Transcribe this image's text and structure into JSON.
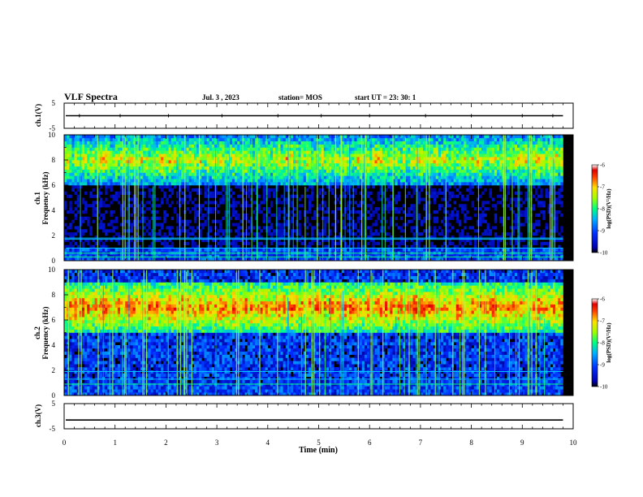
{
  "header": {
    "title": "VLF Spectra",
    "date": "Jul. 3 , 2023",
    "station": "station= MOS",
    "start_ut": "start UT = 23: 30: 1"
  },
  "chart_data": [
    {
      "type": "line",
      "name": "ch1-waveform",
      "ylabel": "ch.1(V)",
      "ylim": [
        -5,
        5
      ],
      "yticks": [
        "5",
        "-5"
      ],
      "xlim": [
        0,
        10
      ],
      "baseline": 0,
      "series_color": "#000000"
    },
    {
      "type": "heatmap",
      "name": "ch1-spectrogram",
      "ylabel": "ch.1 Frequency (kHz)",
      "ylim": [
        0,
        10
      ],
      "yticks": [
        "0",
        "2",
        "4",
        "6",
        "8",
        "10"
      ],
      "xlim": [
        0,
        10
      ],
      "data_end_min": 9.8,
      "description_bands": {
        "emission_band_khz": [
          6,
          10
        ],
        "quiet_band_khz": [
          2,
          5
        ],
        "horizontal_lines_khz": [
          0.3,
          0.6,
          1.0,
          1.7,
          1.8
        ]
      },
      "colorbar": {
        "label": "log(PSD)(V²/Hz)",
        "range": [
          -10,
          -6
        ],
        "ticks": [
          "-6",
          "-7",
          "-8",
          "-9",
          "-10"
        ]
      }
    },
    {
      "type": "heatmap",
      "name": "ch2-spectrogram",
      "ylabel": "ch.2 Frequency (kHz)",
      "ylim": [
        0,
        10
      ],
      "yticks": [
        "0",
        "2",
        "4",
        "6",
        "8",
        "10"
      ],
      "xlim": [
        0,
        10
      ],
      "data_end_min": 9.8,
      "description_bands": {
        "emission_band_khz": [
          5,
          9
        ],
        "quiet_band_khz": [
          1,
          4
        ],
        "horizontal_lines_khz": [
          0.9,
          1.3,
          1.9
        ]
      },
      "colorbar": {
        "label": "log(PSD)(V²/Hz)",
        "range": [
          -10,
          -6
        ],
        "ticks": [
          "-6",
          "-7",
          "-8",
          "-9",
          "-10"
        ]
      }
    },
    {
      "type": "line",
      "name": "ch3-waveform",
      "ylabel": "ch.3(V)",
      "ylim": [
        -5,
        5
      ],
      "yticks": [
        "5",
        "-5"
      ],
      "xlim": [
        0,
        10
      ],
      "baseline": -1.5,
      "series_color": "#000000"
    }
  ],
  "x_axis": {
    "label": "Time (min)",
    "ticks": [
      "0",
      "1",
      "2",
      "3",
      "4",
      "5",
      "6",
      "7",
      "8",
      "9",
      "10"
    ]
  }
}
